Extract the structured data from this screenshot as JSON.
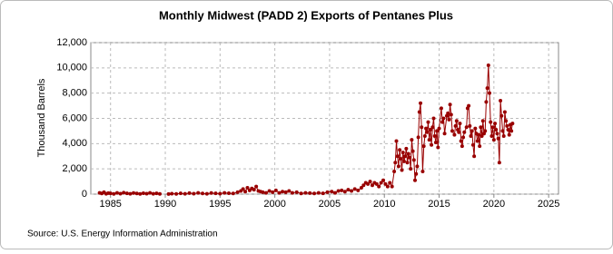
{
  "chart_data": {
    "type": "line",
    "title": "Monthly Midwest (PADD 2) Exports of Pentanes Plus",
    "y_label": "Thousand Barrels",
    "source": "Source: U.S. Energy Information Administration",
    "color": "#990000",
    "markers": true,
    "grid": true,
    "xlim": [
      1983.2,
      2025.9
    ],
    "xticks": [
      1985,
      1990,
      1995,
      2000,
      2005,
      2010,
      2015,
      2020,
      2025
    ],
    "ylim": [
      0,
      12000
    ],
    "yticks": [
      0,
      {
        "value": 2000,
        "label": "2,000"
      },
      {
        "value": 4000,
        "label": "4,000"
      },
      {
        "value": 6000,
        "label": "6,000"
      },
      {
        "value": 8000,
        "label": "8,000"
      },
      {
        "value": 10000,
        "label": "10,000"
      },
      {
        "value": 12000,
        "label": "12,000"
      }
    ],
    "x": [
      1984.0,
      1984.2,
      1984.4,
      1984.6,
      1984.8,
      1985.0,
      1985.3,
      1985.6,
      1985.9,
      1986.2,
      1986.5,
      1986.8,
      1987.1,
      1987.4,
      1987.7,
      1988.0,
      1988.3,
      1988.6,
      1988.9,
      1989.2,
      1989.5,
      1989.9,
      1990.3,
      1990.6,
      1991.0,
      1991.4,
      1991.8,
      1992.2,
      1992.6,
      1993.0,
      1993.4,
      1993.8,
      1994.2,
      1994.6,
      1995.0,
      1995.4,
      1995.8,
      1996.2,
      1996.6,
      1996.9,
      1997.1,
      1997.3,
      1997.5,
      1997.7,
      1997.9,
      1998.1,
      1998.3,
      1998.5,
      1998.7,
      1998.9,
      1999.2,
      1999.5,
      1999.8,
      2000.1,
      2000.4,
      2000.7,
      2001.0,
      2001.3,
      2001.6,
      2002.0,
      2002.4,
      2002.8,
      2003.2,
      2003.6,
      2004.0,
      2004.4,
      2004.8,
      2005.2,
      2005.5,
      2005.8,
      2006.1,
      2006.4,
      2006.7,
      2007.0,
      2007.3,
      2007.6,
      2007.9,
      2008.1,
      2008.3,
      2008.5,
      2008.7,
      2008.9,
      2009.1,
      2009.3,
      2009.5,
      2009.7,
      2009.9,
      2010.1,
      2010.3,
      2010.5,
      2010.7,
      2010.9,
      2011.0,
      2011.1,
      2011.2,
      2011.3,
      2011.4,
      2011.5,
      2011.6,
      2011.7,
      2011.8,
      2011.9,
      2012.0,
      2012.1,
      2012.2,
      2012.3,
      2012.4,
      2012.5,
      2012.6,
      2012.7,
      2012.8,
      2012.9,
      2013.0,
      2013.1,
      2013.2,
      2013.3,
      2013.4,
      2013.5,
      2013.6,
      2013.7,
      2013.8,
      2013.9,
      2014.0,
      2014.1,
      2014.2,
      2014.3,
      2014.4,
      2014.5,
      2014.6,
      2014.7,
      2014.8,
      2014.9,
      2015.0,
      2015.2,
      2015.3,
      2015.4,
      2015.5,
      2015.7,
      2015.8,
      2015.9,
      2016.0,
      2016.1,
      2016.2,
      2016.4,
      2016.5,
      2016.6,
      2016.7,
      2016.8,
      2016.9,
      2017.0,
      2017.1,
      2017.2,
      2017.3,
      2017.5,
      2017.6,
      2017.7,
      2017.8,
      2017.9,
      2018.0,
      2018.1,
      2018.2,
      2018.3,
      2018.4,
      2018.5,
      2018.6,
      2018.7,
      2018.8,
      2018.9,
      2019.0,
      2019.1,
      2019.2,
      2019.3,
      2019.4,
      2019.5,
      2019.6,
      2019.7,
      2019.8,
      2019.9,
      2020.0,
      2020.1,
      2020.2,
      2020.3,
      2020.4,
      2020.5,
      2020.6,
      2020.7,
      2020.8,
      2020.9,
      2021.0,
      2021.1,
      2021.2,
      2021.3,
      2021.4,
      2021.5,
      2021.6,
      2021.7
    ],
    "values": [
      100,
      50,
      150,
      30,
      80,
      60,
      20,
      100,
      40,
      120,
      60,
      30,
      90,
      50,
      20,
      70,
      40,
      100,
      30,
      60,
      20,
      null,
      10,
      40,
      20,
      60,
      30,
      80,
      40,
      100,
      50,
      30,
      90,
      60,
      40,
      100,
      70,
      50,
      150,
      250,
      400,
      200,
      500,
      300,
      450,
      350,
      600,
      250,
      200,
      150,
      100,
      250,
      150,
      300,
      100,
      200,
      150,
      250,
      100,
      150,
      50,
      100,
      80,
      50,
      100,
      60,
      150,
      200,
      100,
      250,
      300,
      200,
      350,
      250,
      400,
      300,
      500,
      700,
      900,
      800,
      1000,
      700,
      900,
      800,
      600,
      900,
      1100,
      800,
      600,
      900,
      600,
      1800,
      2500,
      4200,
      3000,
      2200,
      3500,
      2800,
      1900,
      3300,
      2600,
      3000,
      3600,
      2500,
      3200,
      2900,
      2000,
      4300,
      3400,
      2700,
      1100,
      1600,
      2200,
      4500,
      6500,
      7200,
      5300,
      1800,
      3800,
      4600,
      5200,
      4900,
      5700,
      4300,
      5100,
      3900,
      5300,
      6000,
      4600,
      4100,
      5000,
      3700,
      5200,
      6800,
      5700,
      6000,
      4800,
      6200,
      6400,
      5900,
      7100,
      6300,
      5000,
      4700,
      5400,
      5800,
      5100,
      4900,
      5600,
      4200,
      3800,
      4500,
      4900,
      5300,
      6800,
      7000,
      5400,
      4600,
      5000,
      3900,
      3000,
      5200,
      4800,
      4200,
      4700,
      3800,
      5300,
      4600,
      5800,
      4800,
      5000,
      7300,
      8400,
      10200,
      8000,
      5700,
      4600,
      5300,
      4300,
      5600,
      5100,
      4800,
      4400,
      2500,
      7400,
      6200,
      5000,
      4600,
      6500,
      5800,
      5400,
      5100,
      4700,
      5500,
      5000,
      5600
    ]
  }
}
